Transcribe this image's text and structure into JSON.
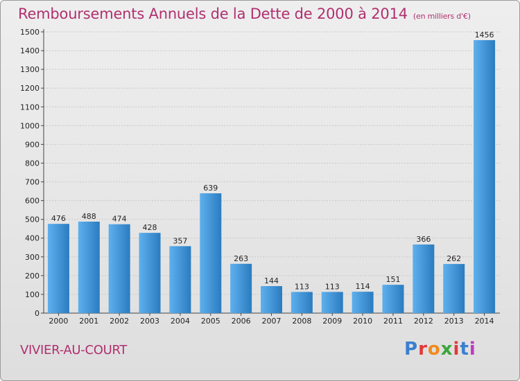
{
  "title": "Remboursements Annuels de la Dette de 2000 à 2014",
  "unit_note": "(en milliers d'€)",
  "place": "VIVIER-AU-COURT",
  "logo": {
    "text": "Proxiti",
    "colors": [
      "#3a7fd0",
      "#e03a3a",
      "#f08a1e",
      "#3aa63a",
      "#e03a3a",
      "#3a7fd0",
      "#c03ac0"
    ]
  },
  "colors": {
    "title": "#b0306f",
    "bar_light": "#5eb0ee",
    "bar_dark": "#2a7cc0"
  },
  "chart_data": {
    "type": "bar",
    "categories": [
      "2000",
      "2001",
      "2002",
      "2003",
      "2004",
      "2005",
      "2006",
      "2007",
      "2008",
      "2009",
      "2010",
      "2011",
      "2012",
      "2013",
      "2014"
    ],
    "values": [
      476,
      488,
      474,
      428,
      357,
      639,
      263,
      144,
      113,
      113,
      114,
      151,
      366,
      262,
      1456
    ],
    "ylim": [
      0,
      1500
    ],
    "yticks": [
      0,
      100,
      200,
      300,
      400,
      500,
      600,
      700,
      800,
      900,
      1000,
      1100,
      1200,
      1300,
      1400,
      1500
    ],
    "grid": true
  }
}
